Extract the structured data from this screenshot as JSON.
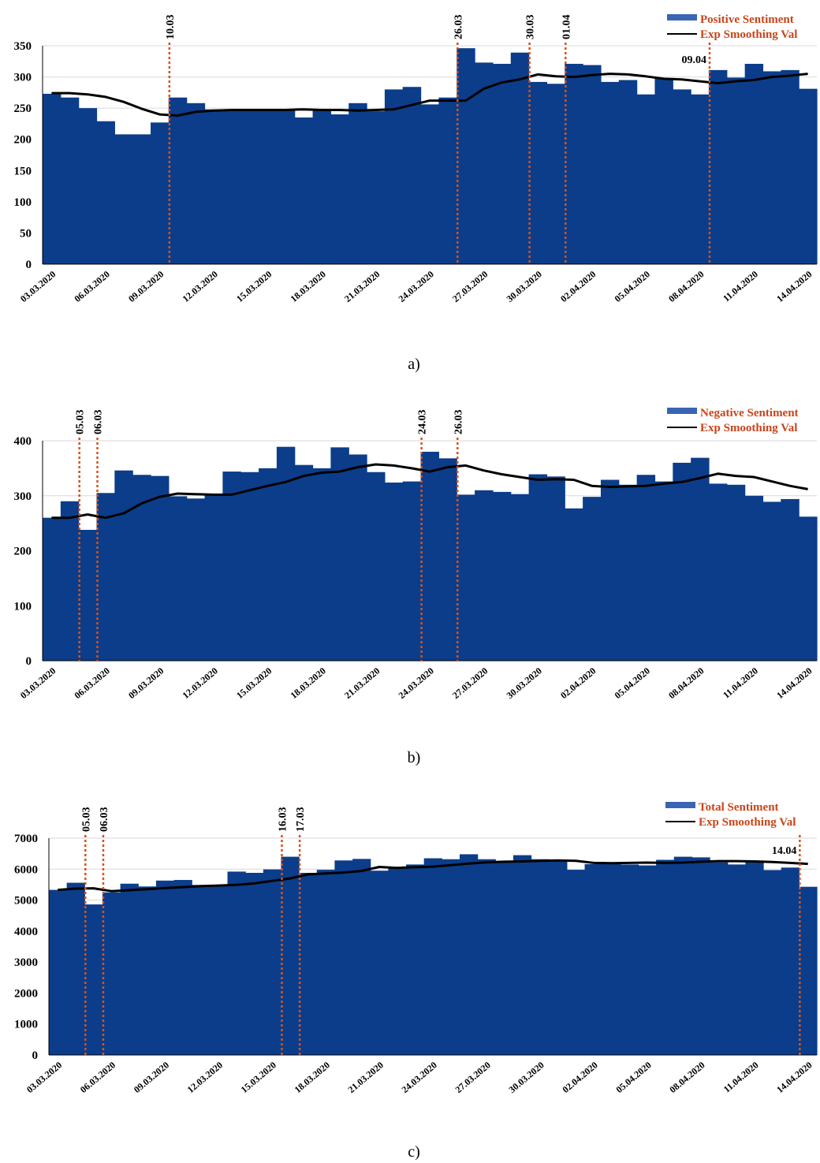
{
  "colors": {
    "bar": "#0b3d8a",
    "legend_bar": "#3a64b4",
    "line": "#000000",
    "event": "#d6521c",
    "legend_text": "#c8451a",
    "grid": "#d9d9d9"
  },
  "chart_data": [
    {
      "type": "bar",
      "caption": "a)",
      "ylim": [
        0,
        350
      ],
      "yticks": [
        0,
        50,
        100,
        150,
        200,
        250,
        300,
        350
      ],
      "x": [
        "03.03.2020",
        "04.03.2020",
        "05.03.2020",
        "06.03.2020",
        "07.03.2020",
        "08.03.2020",
        "09.03.2020",
        "10.03.2020",
        "11.03.2020",
        "12.03.2020",
        "13.03.2020",
        "14.03.2020",
        "15.03.2020",
        "16.03.2020",
        "17.03.2020",
        "18.03.2020",
        "19.03.2020",
        "20.03.2020",
        "21.03.2020",
        "22.03.2020",
        "23.03.2020",
        "24.03.2020",
        "25.03.2020",
        "26.03.2020",
        "27.03.2020",
        "28.03.2020",
        "29.03.2020",
        "30.03.2020",
        "31.03.2020",
        "01.04.2020",
        "02.04.2020",
        "03.04.2020",
        "04.04.2020",
        "05.04.2020",
        "06.04.2020",
        "07.04.2020",
        "08.04.2020",
        "09.04.2020",
        "10.04.2020",
        "11.04.2020",
        "12.04.2020",
        "13.04.2020",
        "14.04.2020"
      ],
      "x_tick_labels": [
        "03.03.2020",
        "06.03.2020",
        "09.03.2020",
        "12.03.2020",
        "15.03.2020",
        "18.03.2020",
        "21.03.2020",
        "24.03.2020",
        "27.03.2020",
        "30.03.2020",
        "02.04.2020",
        "05.04.2020",
        "08.04.2020",
        "11.04.2020",
        "14.04.2020"
      ],
      "series": [
        {
          "name": "Positive Sentiment",
          "type": "bar",
          "values": [
            273,
            267,
            250,
            229,
            208,
            208,
            227,
            267,
            258,
            248,
            248,
            248,
            248,
            248,
            235,
            247,
            240,
            258,
            245,
            280,
            284,
            256,
            267,
            346,
            323,
            321,
            339,
            292,
            289,
            321,
            319,
            292,
            295,
            272,
            298,
            280,
            272,
            311,
            299,
            321,
            309,
            311,
            281
          ]
        },
        {
          "name": "Exp Smoothing Val",
          "type": "line",
          "values": [
            274,
            274,
            272,
            268,
            260,
            249,
            240,
            238,
            244,
            246,
            247,
            247,
            247,
            247,
            248,
            247,
            247,
            246,
            247,
            248,
            255,
            262,
            262,
            262,
            281,
            291,
            296,
            304,
            301,
            300,
            303,
            305,
            304,
            301,
            297,
            296,
            293,
            290,
            293,
            295,
            300,
            302,
            305
          ]
        }
      ],
      "events": [
        {
          "label": "10.03",
          "index": 7,
          "label_pos": "top"
        },
        {
          "label": "26.03",
          "index": 23,
          "label_pos": "top"
        },
        {
          "label": "30.03",
          "index": 27,
          "label_pos": "top"
        },
        {
          "label": "01.04",
          "index": 29,
          "label_pos": "top"
        },
        {
          "label": "09.04",
          "index": 37,
          "label_pos": "inside"
        }
      ],
      "legend_position": "top-right"
    },
    {
      "type": "bar",
      "caption": "b)",
      "ylim": [
        0,
        400
      ],
      "yticks": [
        0,
        100,
        200,
        300,
        400
      ],
      "x": [
        "03.03.2020",
        "04.03.2020",
        "05.03.2020",
        "06.03.2020",
        "07.03.2020",
        "08.03.2020",
        "09.03.2020",
        "10.03.2020",
        "11.03.2020",
        "12.03.2020",
        "13.03.2020",
        "14.03.2020",
        "15.03.2020",
        "16.03.2020",
        "17.03.2020",
        "18.03.2020",
        "19.03.2020",
        "20.03.2020",
        "21.03.2020",
        "22.03.2020",
        "23.03.2020",
        "24.03.2020",
        "25.03.2020",
        "26.03.2020",
        "27.03.2020",
        "28.03.2020",
        "29.03.2020",
        "30.03.2020",
        "31.03.2020",
        "01.04.2020",
        "02.04.2020",
        "03.04.2020",
        "04.04.2020",
        "05.04.2020",
        "06.04.2020",
        "07.04.2020",
        "08.04.2020",
        "09.04.2020",
        "10.04.2020",
        "11.04.2020",
        "12.04.2020",
        "13.04.2020",
        "14.04.2020"
      ],
      "x_tick_labels": [
        "03.03.2020",
        "06.03.2020",
        "09.03.2020",
        "12.03.2020",
        "15.03.2020",
        "18.03.2020",
        "21.03.2020",
        "24.03.2020",
        "27.03.2020",
        "30.03.2020",
        "02.04.2020",
        "05.04.2020",
        "08.04.2020",
        "11.04.2020",
        "14.04.2020"
      ],
      "series": [
        {
          "name": "Negative Sentiment",
          "type": "bar",
          "values": [
            260,
            290,
            238,
            305,
            346,
            338,
            336,
            299,
            295,
            303,
            344,
            343,
            350,
            389,
            356,
            350,
            388,
            375,
            343,
            324,
            326,
            380,
            368,
            302,
            310,
            307,
            303,
            339,
            335,
            277,
            298,
            329,
            320,
            338,
            326,
            360,
            369,
            322,
            320,
            300,
            289,
            294,
            262
          ]
        },
        {
          "name": "Exp Smoothing Val",
          "type": "line",
          "values": [
            260,
            260,
            266,
            260,
            268,
            286,
            298,
            304,
            303,
            302,
            302,
            310,
            318,
            325,
            336,
            342,
            344,
            352,
            357,
            355,
            350,
            344,
            352,
            355,
            346,
            339,
            334,
            329,
            330,
            329,
            318,
            316,
            317,
            318,
            322,
            325,
            332,
            340,
            336,
            334,
            326,
            318,
            312
          ]
        }
      ],
      "events": [
        {
          "label": "05.03",
          "index": 2,
          "label_pos": "top"
        },
        {
          "label": "06.03",
          "index": 3,
          "label_pos": "top"
        },
        {
          "label": "24.03",
          "index": 21,
          "label_pos": "top"
        },
        {
          "label": "26.03",
          "index": 23,
          "label_pos": "top"
        }
      ],
      "legend_position": "top-right"
    },
    {
      "type": "bar",
      "caption": "c)",
      "ylim": [
        0,
        7000
      ],
      "yticks": [
        0,
        1000,
        2000,
        3000,
        4000,
        5000,
        6000,
        7000
      ],
      "x": [
        "03.03.2020",
        "04.03.2020",
        "05.03.2020",
        "06.03.2020",
        "07.03.2020",
        "08.03.2020",
        "09.03.2020",
        "10.03.2020",
        "11.03.2020",
        "12.03.2020",
        "13.03.2020",
        "14.03.2020",
        "15.03.2020",
        "16.03.2020",
        "17.03.2020",
        "18.03.2020",
        "19.03.2020",
        "20.03.2020",
        "21.03.2020",
        "22.03.2020",
        "23.03.2020",
        "24.03.2020",
        "25.03.2020",
        "26.03.2020",
        "27.03.2020",
        "28.03.2020",
        "29.03.2020",
        "30.03.2020",
        "31.03.2020",
        "01.04.2020",
        "02.04.2020",
        "03.04.2020",
        "04.04.2020",
        "05.04.2020",
        "06.04.2020",
        "07.04.2020",
        "08.04.2020",
        "09.04.2020",
        "10.04.2020",
        "11.04.2020",
        "12.04.2020",
        "13.04.2020",
        "14.04.2020"
      ],
      "x_tick_labels": [
        "03.03.2020",
        "06.03.2020",
        "09.03.2020",
        "12.03.2020",
        "15.03.2020",
        "18.03.2020",
        "21.03.2020",
        "24.03.2020",
        "27.03.2020",
        "30.03.2020",
        "02.04.2020",
        "05.04.2020",
        "08.04.2020",
        "11.04.2020",
        "14.04.2020"
      ],
      "series": [
        {
          "name": "Total Sentiment",
          "type": "bar",
          "values": [
            5330,
            5560,
            4860,
            5250,
            5530,
            5440,
            5630,
            5650,
            5490,
            5490,
            5920,
            5880,
            5990,
            6400,
            5880,
            5980,
            6280,
            6330,
            5950,
            6060,
            6150,
            6350,
            6320,
            6480,
            6320,
            6220,
            6450,
            6320,
            6270,
            5980,
            6160,
            6200,
            6150,
            6120,
            6300,
            6400,
            6380,
            6220,
            6150,
            6250,
            5970,
            6050,
            5430
          ]
        },
        {
          "name": "Exp Smoothing Val",
          "type": "line",
          "values": [
            5330,
            5370,
            5380,
            5290,
            5320,
            5350,
            5390,
            5420,
            5450,
            5470,
            5490,
            5540,
            5620,
            5700,
            5830,
            5860,
            5890,
            5940,
            6070,
            6040,
            6060,
            6080,
            6130,
            6180,
            6220,
            6240,
            6250,
            6270,
            6280,
            6270,
            6200,
            6190,
            6200,
            6210,
            6200,
            6210,
            6240,
            6260,
            6260,
            6250,
            6230,
            6200,
            6170
          ]
        }
      ],
      "events": [
        {
          "label": "05.03",
          "index": 2,
          "label_pos": "top"
        },
        {
          "label": "06.03",
          "index": 3,
          "label_pos": "top"
        },
        {
          "label": "16.03",
          "index": 13,
          "label_pos": "top"
        },
        {
          "label": "17.03",
          "index": 14,
          "label_pos": "top"
        },
        {
          "label": "14.04",
          "index": 42,
          "label_pos": "inside"
        }
      ],
      "legend_position": "top-right"
    }
  ]
}
